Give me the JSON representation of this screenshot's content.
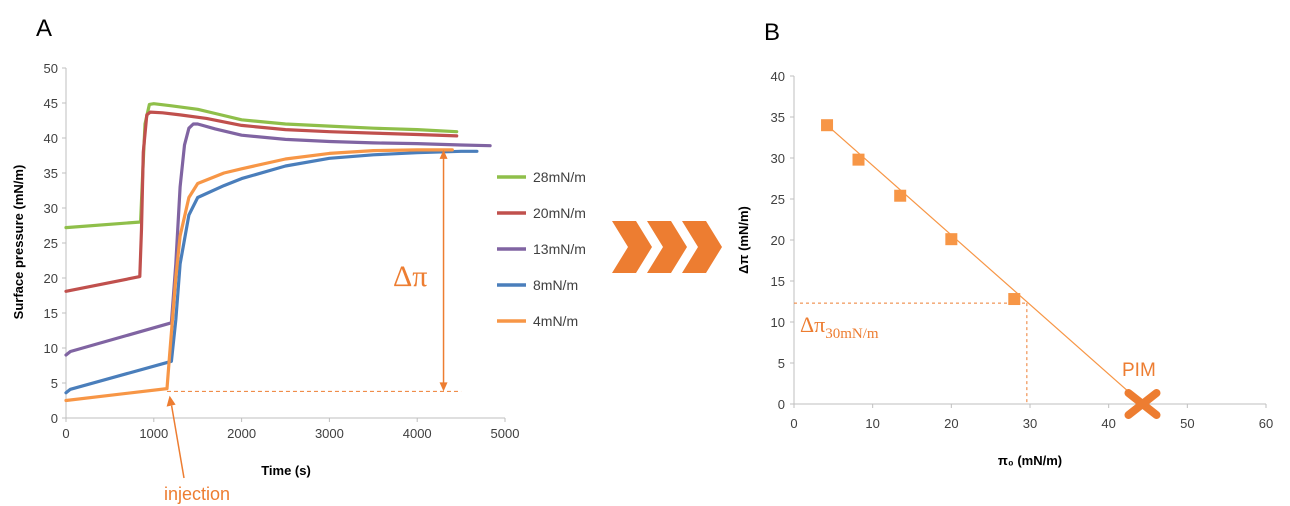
{
  "colors": {
    "accent": "#ed7d31",
    "series_28": "#8fbf4a",
    "series_20": "#c0504d",
    "series_13": "#8064a2",
    "series_8": "#4a7ebb",
    "series_4": "#f79646",
    "axis": "#bfbfbf"
  },
  "chart_data": [
    {
      "type": "line",
      "panel": "A",
      "xlabel": "Time (s)",
      "ylabel": "Surface pressure (mN/m)",
      "xlim": [
        0,
        5000
      ],
      "ylim": [
        0,
        50
      ],
      "xticks": [
        "0",
        "1000",
        "2000",
        "3000",
        "4000",
        "5000"
      ],
      "yticks": [
        "0",
        "5",
        "10",
        "15",
        "20",
        "25",
        "30",
        "35",
        "40",
        "45",
        "50"
      ],
      "grid": false,
      "legend_position": "right",
      "series": [
        {
          "name": "28mN/m",
          "color": "#8fbf4a",
          "x": [
            0,
            850,
            870,
            900,
            950,
            1000,
            1200,
            1500,
            1700,
            2000,
            2500,
            3000,
            3500,
            4000,
            4450
          ],
          "y": [
            27.2,
            28.0,
            34,
            42,
            44.8,
            44.9,
            44.6,
            44.1,
            43.5,
            42.6,
            42.0,
            41.7,
            41.4,
            41.2,
            40.9
          ]
        },
        {
          "name": "20mN/m",
          "color": "#c0504d",
          "x": [
            0,
            840,
            860,
            880,
            920,
            960,
            1100,
            1300,
            1600,
            2000,
            2500,
            3000,
            3500,
            4000,
            4450
          ],
          "y": [
            18.1,
            20.2,
            27,
            38,
            43.3,
            43.7,
            43.6,
            43.3,
            42.8,
            41.8,
            41.2,
            40.9,
            40.7,
            40.5,
            40.3
          ]
        },
        {
          "name": "13mN/m",
          "color": "#8064a2",
          "x": [
            0,
            50,
            1200,
            1250,
            1300,
            1350,
            1400,
            1450,
            1500,
            1700,
            2000,
            2500,
            3000,
            3500,
            4000,
            4500,
            4830
          ],
          "y": [
            9.0,
            9.5,
            13.6,
            22,
            33,
            39,
            41.4,
            42.0,
            42.0,
            41.3,
            40.4,
            39.8,
            39.5,
            39.3,
            39.2,
            39.0,
            38.9
          ]
        },
        {
          "name": "8mN/m",
          "color": "#4a7ebb",
          "x": [
            0,
            50,
            1200,
            1250,
            1300,
            1400,
            1500,
            1800,
            2000,
            2500,
            3000,
            3500,
            4000,
            4500,
            4680
          ],
          "y": [
            3.6,
            4.1,
            8.1,
            14,
            22,
            29,
            31.5,
            33.2,
            34.2,
            36.0,
            37.1,
            37.6,
            37.9,
            38.1,
            38.1
          ]
        },
        {
          "name": "4mN/m",
          "color": "#f79646",
          "x": [
            0,
            1150,
            1180,
            1250,
            1300,
            1400,
            1500,
            1800,
            2000,
            2500,
            3000,
            3500,
            4000,
            4400
          ],
          "y": [
            2.5,
            4.2,
            9,
            20,
            26,
            31.5,
            33.5,
            35.0,
            35.6,
            37.0,
            37.8,
            38.2,
            38.3,
            38.3
          ]
        }
      ],
      "annotations": {
        "delta_pi": "Δπ",
        "injection": "injection"
      }
    },
    {
      "type": "scatter",
      "panel": "B",
      "xlabel": "π₀ (mN/m)",
      "ylabel": "Δπ (mN/m)",
      "xlim": [
        0,
        60
      ],
      "ylim": [
        0,
        40
      ],
      "xticks": [
        "0",
        "10",
        "20",
        "30",
        "40",
        "50",
        "60"
      ],
      "yticks": [
        "0",
        "5",
        "10",
        "15",
        "20",
        "25",
        "30",
        "35",
        "40"
      ],
      "grid": false,
      "points": {
        "x": [
          4.2,
          8.2,
          13.5,
          20.0,
          28.0
        ],
        "y": [
          34.0,
          29.8,
          25.4,
          20.1,
          12.8
        ]
      },
      "fit_line": {
        "x": [
          4.2,
          44.3
        ],
        "y": [
          34.0,
          0
        ]
      },
      "pim": {
        "x": 44.3,
        "y": 0,
        "label": "PIM"
      },
      "delta30": {
        "x": 29.6,
        "y": 12.3,
        "label_main": "Δπ",
        "label_sub": "30mN/m"
      }
    }
  ],
  "chevron_count": 3
}
